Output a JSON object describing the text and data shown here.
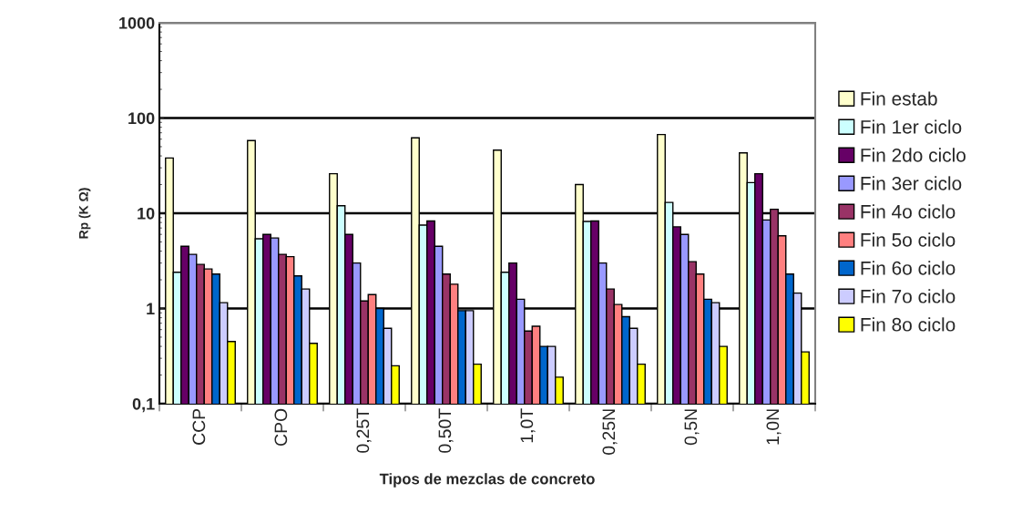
{
  "chart_data": {
    "type": "bar",
    "xlabel": "Tipos de mezclas de concreto",
    "ylabel": "Rp (K Ω)",
    "categories": [
      "CCP",
      "CPO",
      "0,25T",
      "0,50T",
      "1,0T",
      "0,25N",
      "0,5N",
      "1,0N"
    ],
    "series": [
      {
        "name": "Fin estab",
        "color": "#ffffcc",
        "values": [
          38,
          58,
          26,
          62,
          46,
          20,
          67,
          43
        ]
      },
      {
        "name": "Fin 1er ciclo",
        "color": "#ccffff",
        "values": [
          2.4,
          5.4,
          12,
          7.5,
          2.4,
          8.2,
          13,
          21
        ]
      },
      {
        "name": "Fin 2do ciclo",
        "color": "#660066",
        "values": [
          4.5,
          6.0,
          6.0,
          8.3,
          3.0,
          8.3,
          7.2,
          26
        ]
      },
      {
        "name": "Fin 3er ciclo",
        "color": "#9999ff",
        "values": [
          3.7,
          5.5,
          3.0,
          4.5,
          1.25,
          3.0,
          6.0,
          8.5
        ]
      },
      {
        "name": "Fin 4o ciclo",
        "color": "#993366",
        "values": [
          2.9,
          3.7,
          1.2,
          2.3,
          0.58,
          1.6,
          3.1,
          11
        ]
      },
      {
        "name": "Fin 5o ciclo",
        "color": "#ff8080",
        "values": [
          2.6,
          3.5,
          1.4,
          1.8,
          0.65,
          1.1,
          2.3,
          5.8
        ]
      },
      {
        "name": "Fin 6o ciclo",
        "color": "#0066cc",
        "values": [
          2.3,
          2.2,
          1.0,
          0.95,
          0.4,
          0.82,
          1.25,
          2.3
        ]
      },
      {
        "name": "Fin 7o ciclo",
        "color": "#ccccff",
        "values": [
          1.15,
          1.6,
          0.62,
          0.95,
          0.4,
          0.62,
          1.15,
          1.45
        ]
      },
      {
        "name": "Fin 8o ciclo",
        "color": "#ffff00",
        "values": [
          0.45,
          0.43,
          0.25,
          0.26,
          0.19,
          0.26,
          0.4,
          0.35
        ]
      }
    ],
    "log": true,
    "ylim": [
      0.1,
      1000
    ],
    "yticks": [
      {
        "value": 0.1,
        "label": "0,1"
      },
      1,
      10,
      100,
      1000
    ],
    "grid": "y",
    "legend": "right"
  }
}
